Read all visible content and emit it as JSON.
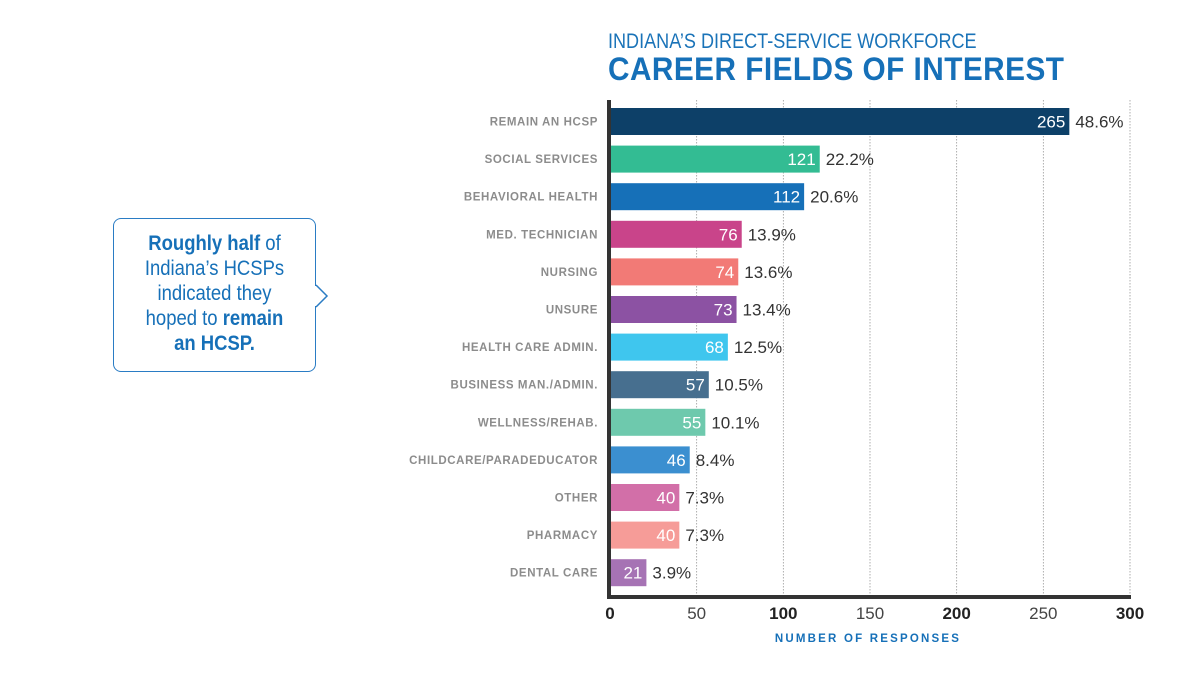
{
  "header": {
    "subtitle": "INDIANA’S DIRECT-SERVICE WORKFORCE",
    "title": "CAREER FIELDS OF INTEREST"
  },
  "callout": {
    "line1_bold": "Roughly half",
    "line1_rest": " of",
    "line2": "Indiana’s HCSPs",
    "line3": "indicated they",
    "line4_pre": "hoped to ",
    "line4_bold": "remain",
    "line5_bold": "an HCSP."
  },
  "colors": {
    "accent": "#1670b8",
    "axis": "#333333",
    "label": "#8c8c8c",
    "value_text": "#333333"
  },
  "chart_data": {
    "type": "bar",
    "orientation": "horizontal",
    "title": "CAREER FIELDS OF INTEREST",
    "subtitle": "INDIANA’S DIRECT-SERVICE WORKFORCE",
    "xlabel": "NUMBER OF RESPONSES",
    "ylabel": "",
    "xlim": [
      0,
      300
    ],
    "xticks": [
      {
        "value": 0,
        "label": "0",
        "bold": true
      },
      {
        "value": 50,
        "label": "50",
        "bold": false
      },
      {
        "value": 100,
        "label": "100",
        "bold": true
      },
      {
        "value": 150,
        "label": "150",
        "bold": false
      },
      {
        "value": 200,
        "label": "200",
        "bold": true
      },
      {
        "value": 250,
        "label": "250",
        "bold": false
      },
      {
        "value": 300,
        "label": "300",
        "bold": true
      }
    ],
    "grid": true,
    "categories": [
      "REMAIN AN HCSP",
      "SOCIAL SERVICES",
      "BEHAVIORAL HEALTH",
      "MED. TECHNICIAN",
      "NURSING",
      "UNSURE",
      "HEALTH CARE ADMIN.",
      "BUSINESS MAN./ADMIN.",
      "WELLNESS/REHAB.",
      "CHILDCARE/PARADEDUCATOR",
      "OTHER",
      "PHARMACY",
      "DENTAL CARE"
    ],
    "values": [
      265,
      121,
      112,
      76,
      74,
      73,
      68,
      57,
      55,
      46,
      40,
      40,
      21
    ],
    "percent_labels": [
      "48.6%",
      "22.2%",
      "20.6%",
      "13.9%",
      "13.6%",
      "13.4%",
      "12.5%",
      "10.5%",
      "10.1%",
      "8.4%",
      "7.3%",
      "7.3%",
      "3.9%"
    ],
    "bar_colors": [
      "#0d4068",
      "#33bc93",
      "#1670b8",
      "#c9448a",
      "#f27a76",
      "#8c52a3",
      "#3fc6ee",
      "#476f8f",
      "#6ec9ad",
      "#3b8fd0",
      "#d26fa8",
      "#f69c98",
      "#a673b4"
    ]
  }
}
